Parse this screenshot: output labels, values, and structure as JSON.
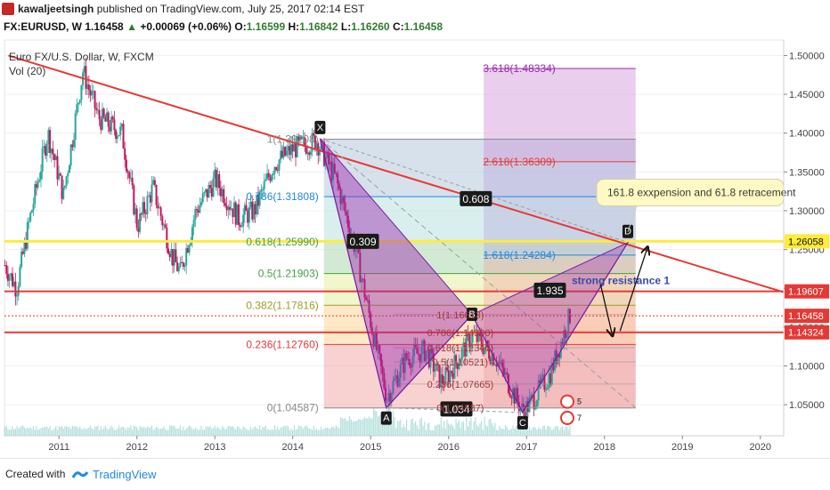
{
  "header": {
    "author": "kawaljeetsingh",
    "published": "published on TradingView.com, July 25, 2017 02:14 EST"
  },
  "ticker": {
    "symbol": "FX:EURUSD, W",
    "last": "1.16458",
    "change": "+0.00069 (+0.06%)",
    "o_label": "O:",
    "o_val": "1.16599",
    "h_label": "H:",
    "h_val": "1.16842",
    "l_label": "L:",
    "l_val": "1.16260",
    "c_label": "C:",
    "c_val": "1.16458"
  },
  "legend": {
    "name": "Euro FX/U.S. Dollar, W, FXCM",
    "vol": "Vol (20)"
  },
  "footer": {
    "created_with": "Created with",
    "brand": "TradingView"
  },
  "colors": {
    "candle_up": "#26a69a",
    "candle_down": "#c2185b",
    "trendline": "#e53935",
    "support_line": "#e53935",
    "fib_yellow": "#ffeb3b",
    "pattern_fill": "#9c27b0"
  },
  "chart_data": {
    "type": "candlestick",
    "x_axis": {
      "min": 2010.3,
      "max": 2020.3,
      "ticks": [
        {
          "v": 2011,
          "label": "2011"
        },
        {
          "v": 2012,
          "label": "2012"
        },
        {
          "v": 2013,
          "label": "2013"
        },
        {
          "v": 2014,
          "label": "2014"
        },
        {
          "v": 2015,
          "label": "2015"
        },
        {
          "v": 2016,
          "label": "2016"
        },
        {
          "v": 2017,
          "label": "2017"
        },
        {
          "v": 2018,
          "label": "2018"
        },
        {
          "v": 2019,
          "label": "2019"
        },
        {
          "v": 2020,
          "label": "2020"
        }
      ]
    },
    "y_axis": {
      "min": 1.01,
      "max": 1.52,
      "ticks": [
        {
          "v": 1.05,
          "label": "1.05000"
        },
        {
          "v": 1.1,
          "label": "1.10000"
        },
        {
          "v": 1.15,
          "label": "1.15000"
        },
        {
          "v": 1.2,
          "label": "1.20000"
        },
        {
          "v": 1.25,
          "label": "1.25000"
        },
        {
          "v": 1.3,
          "label": "1.30000"
        },
        {
          "v": 1.35,
          "label": "1.35000"
        },
        {
          "v": 1.4,
          "label": "1.40000"
        },
        {
          "v": 1.45,
          "label": "1.45000"
        },
        {
          "v": 1.5,
          "label": "1.50000"
        }
      ]
    },
    "price_anchors": [
      [
        2010.3,
        1.23
      ],
      [
        2010.45,
        1.2
      ],
      [
        2010.6,
        1.28
      ],
      [
        2010.85,
        1.4
      ],
      [
        2011.05,
        1.32
      ],
      [
        2011.3,
        1.48
      ],
      [
        2011.5,
        1.42
      ],
      [
        2011.8,
        1.4
      ],
      [
        2012.0,
        1.28
      ],
      [
        2012.2,
        1.33
      ],
      [
        2012.45,
        1.24
      ],
      [
        2012.55,
        1.22
      ],
      [
        2012.75,
        1.3
      ],
      [
        2013.0,
        1.34
      ],
      [
        2013.3,
        1.29
      ],
      [
        2013.5,
        1.3
      ],
      [
        2013.75,
        1.36
      ],
      [
        2014.0,
        1.38
      ],
      [
        2014.3,
        1.39
      ],
      [
        2014.55,
        1.34
      ],
      [
        2014.8,
        1.25
      ],
      [
        2015.05,
        1.13
      ],
      [
        2015.2,
        1.06
      ],
      [
        2015.45,
        1.11
      ],
      [
        2015.7,
        1.12
      ],
      [
        2015.9,
        1.08
      ],
      [
        2016.0,
        1.09
      ],
      [
        2016.3,
        1.14
      ],
      [
        2016.6,
        1.11
      ],
      [
        2016.95,
        1.04
      ],
      [
        2017.1,
        1.06
      ],
      [
        2017.3,
        1.09
      ],
      [
        2017.55,
        1.165
      ]
    ],
    "fib_box": {
      "x_start": 2014.4,
      "x_end": 2018.4,
      "levels": [
        {
          "ratio": "0",
          "label": "0(1.04587)",
          "price": 1.04587,
          "color": "#888888"
        },
        {
          "ratio": "0.236",
          "label": "0.236(1.12760)",
          "price": 1.1276,
          "color": "#e53935"
        },
        {
          "ratio": "0.382",
          "label": "0.382(1.17816)",
          "price": 1.17816,
          "color": "#9e9d24"
        },
        {
          "ratio": "0.5",
          "label": "0.5(1.21903)",
          "price": 1.21903,
          "color": "#43a047"
        },
        {
          "ratio": "0.618",
          "label": "0.618(1.25990)",
          "price": 1.2599,
          "color": "#43a047"
        },
        {
          "ratio": "0.786",
          "label": "0.786(1.31808)",
          "price": 1.31808,
          "color": "#1e88e5"
        },
        {
          "ratio": "1",
          "label": "1(1.39208)",
          "price": 1.39208,
          "color": "#888888"
        },
        {
          "ratio": "1.618",
          "label": "1.618(1.24284)",
          "price": 1.24284,
          "color": "#1e88e5"
        },
        {
          "ratio": "2.618",
          "label": "2.618(1.36309)",
          "price": 1.36309,
          "color": "#e53935"
        },
        {
          "ratio": "3.618",
          "label": "3.618(1.48334)",
          "price": 1.48334,
          "color": "#9c27b0"
        }
      ]
    },
    "small_fib": {
      "x_start": 2015.3,
      "x_end": 2018.4,
      "levels": [
        {
          "label": "1(1.16613)",
          "price": 1.16613
        },
        {
          "label": "0.786(1.14300)",
          "price": 1.143
        },
        {
          "label": "0.618(1.12340)",
          "price": 1.1234
        },
        {
          "label": "0.5(1.10521)",
          "price": 1.10521
        },
        {
          "label": "0.236(1.07665)",
          "price": 1.07665
        },
        {
          "label": "0(1.04587)",
          "price": 1.04587
        }
      ]
    },
    "pattern": {
      "points": [
        {
          "name": "X",
          "x": 2014.35,
          "y": 1.393
        },
        {
          "name": "A",
          "x": 2015.2,
          "y": 1.046
        },
        {
          "name": "B",
          "x": 2016.3,
          "y": 1.166
        },
        {
          "name": "C",
          "x": 2016.95,
          "y": 1.04
        },
        {
          "name": "D",
          "x": 2018.3,
          "y": 1.259
        }
      ],
      "ratios": [
        {
          "label": "0.309",
          "x": 2014.9,
          "y": 1.26
        },
        {
          "label": "0.608",
          "x": 2016.35,
          "y": 1.315
        },
        {
          "label": "1.935",
          "x": 2017.3,
          "y": 1.197
        },
        {
          "label": "1.034",
          "x": 2016.1,
          "y": 1.044
        }
      ]
    },
    "trendline": {
      "x1": 2010.35,
      "y1": 1.5,
      "x2": 2020.3,
      "y2": 1.195
    },
    "dashed_line": {
      "x1": 2014.35,
      "y1": 1.393,
      "x2": 2018.4,
      "y2": 1.046
    },
    "h_lines": [
      {
        "price": 1.26058,
        "color": "#ffeb3b",
        "width": 3,
        "label": "1.26058"
      },
      {
        "price": 1.19607,
        "color": "#e53935",
        "width": 2,
        "label": "1.19607"
      },
      {
        "price": 1.14324,
        "color": "#e53935",
        "width": 2,
        "label": "1.14324"
      },
      {
        "price": 1.16458,
        "color": "#e53935",
        "width": 1,
        "dotted": true,
        "label": "1.16458"
      }
    ],
    "annotations": {
      "callout": "161.8 exxpension and 61.8 retracement",
      "resistance": "strong resistance 1"
    },
    "arrows": [
      {
        "x1": 2017.95,
        "y1": 1.205,
        "x2": 2018.1,
        "y2": 1.14
      },
      {
        "x1": 2018.2,
        "y1": 1.145,
        "x2": 2018.55,
        "y2": 1.252
      }
    ],
    "badges": [
      {
        "label": "5",
        "x": 2017.5,
        "y": 1.054
      },
      {
        "label": "7",
        "x": 2017.5,
        "y": 1.033
      }
    ]
  }
}
